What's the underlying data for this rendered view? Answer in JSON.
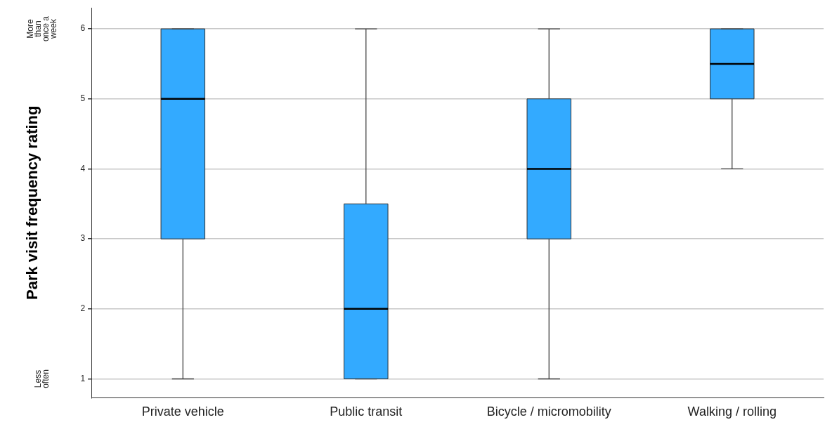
{
  "chart_data": {
    "type": "box",
    "ylabel": "Park visit frequency rating",
    "categories": [
      "Private vehicle",
      "Public transit",
      "Bicycle / micromobility",
      "Walking / rolling"
    ],
    "color": "#33aaff",
    "boxes": [
      {
        "low": 1,
        "q1": 3,
        "median": 5,
        "q3": 6,
        "high": 6
      },
      {
        "low": 1,
        "q1": 1,
        "median": 2,
        "q3": 3.5,
        "high": 6
      },
      {
        "low": 1,
        "q1": 3,
        "median": 4,
        "q3": 5,
        "high": 6
      },
      {
        "low": 4,
        "q1": 5,
        "median": 5.5,
        "q3": 6,
        "high": 6
      }
    ],
    "ylim": [
      0.73,
      6.3
    ],
    "yticks": [
      1,
      2,
      3,
      4,
      5,
      6
    ],
    "grid": "y",
    "legend": false,
    "annotations": [
      "Less often",
      "More than once a week"
    ]
  }
}
